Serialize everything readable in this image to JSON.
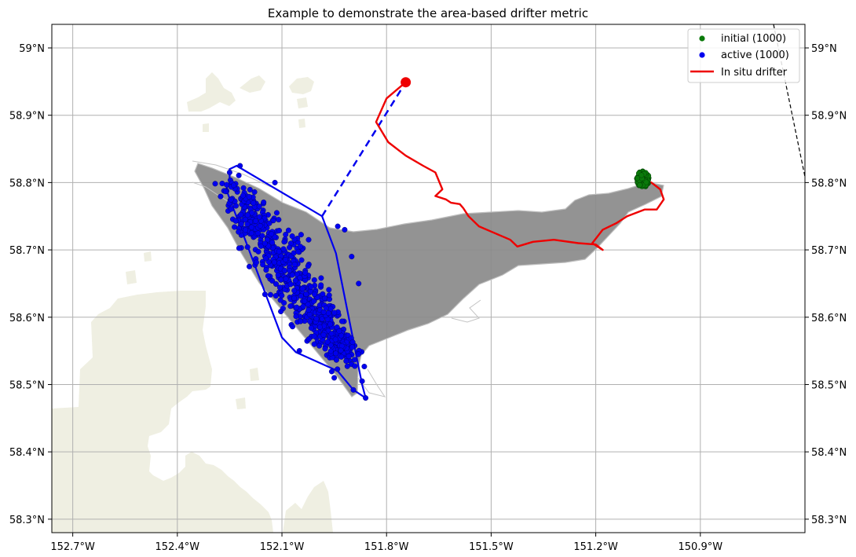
{
  "chart_data": {
    "type": "map",
    "title": "Example to demonstrate the area-based drifter metric",
    "x_ticks": [
      "152.7°W",
      "152.4°W",
      "152.1°W",
      "151.8°W",
      "151.5°W",
      "151.2°W",
      "150.9°W"
    ],
    "x_tick_values": [
      -152.7,
      -152.4,
      -152.1,
      -151.8,
      -151.5,
      -151.2,
      -150.9
    ],
    "y_ticks": [
      "58.3°N",
      "58.4°N",
      "58.5°N",
      "58.6°N",
      "58.7°N",
      "58.8°N",
      "58.9°N",
      "59°N"
    ],
    "y_tick_values": [
      58.3,
      58.4,
      58.5,
      58.6,
      58.7,
      58.8,
      58.9,
      59.0
    ],
    "xlim": [
      -152.76,
      -150.6
    ],
    "ylim": [
      58.28,
      59.035
    ],
    "grid": true,
    "legend_position": "top-right",
    "legend": [
      {
        "label": "initial (1000)",
        "kind": "point",
        "color": "#0a7a0a"
      },
      {
        "label": "active (1000)",
        "kind": "point",
        "color": "#0000ee"
      },
      {
        "label": "In situ drifter",
        "kind": "line",
        "color": "#ee0000"
      }
    ],
    "colors": {
      "land": "#efefe2",
      "trajectories": "#808080",
      "initial": "#0a7a0a",
      "active": "#0000ee",
      "drifter": "#ee0000",
      "hull": "#0000ee"
    },
    "drifter_track": [
      [
        -151.745,
        58.949
      ],
      [
        -151.8,
        58.925
      ],
      [
        -151.83,
        58.89
      ],
      [
        -151.795,
        58.86
      ],
      [
        -151.745,
        58.84
      ],
      [
        -151.695,
        58.825
      ],
      [
        -151.66,
        58.815
      ],
      [
        -151.64,
        58.79
      ],
      [
        -151.66,
        58.78
      ],
      [
        -151.63,
        58.775
      ],
      [
        -151.615,
        58.77
      ],
      [
        -151.59,
        58.768
      ],
      [
        -151.58,
        58.762
      ],
      [
        -151.565,
        58.75
      ],
      [
        -151.535,
        58.735
      ],
      [
        -151.49,
        58.725
      ],
      [
        -151.445,
        58.715
      ],
      [
        -151.425,
        58.705
      ],
      [
        -151.38,
        58.712
      ],
      [
        -151.32,
        58.715
      ],
      [
        -151.25,
        58.71
      ],
      [
        -151.2,
        58.708
      ],
      [
        -151.18,
        58.7
      ],
      [
        -151.21,
        58.71
      ],
      [
        -151.18,
        58.73
      ],
      [
        -151.14,
        58.74
      ],
      [
        -151.11,
        58.75
      ],
      [
        -151.06,
        58.76
      ],
      [
        -151.025,
        58.76
      ],
      [
        -151.005,
        58.775
      ],
      [
        -151.015,
        58.79
      ],
      [
        -151.04,
        58.8
      ],
      [
        -151.065,
        58.803
      ]
    ],
    "drifter_end": [
      -151.745,
      58.949
    ],
    "hull": [
      [
        -152.25,
        58.82
      ],
      [
        -152.23,
        58.825
      ],
      [
        -151.985,
        58.75
      ],
      [
        -151.945,
        58.695
      ],
      [
        -151.87,
        58.5
      ],
      [
        -151.86,
        58.48
      ],
      [
        -151.895,
        58.492
      ],
      [
        -151.94,
        58.52
      ],
      [
        -152.06,
        58.548
      ],
      [
        -152.1,
        58.57
      ],
      [
        -152.26,
        58.79
      ],
      [
        -152.25,
        58.8
      ]
    ],
    "hull_centroid_link": {
      "from": [
        -151.985,
        58.75
      ],
      "to": [
        -151.745,
        58.949
      ]
    },
    "initial_center": [
      -151.065,
      58.805
    ],
    "initial_count": 1000,
    "active_count": 1000
  }
}
